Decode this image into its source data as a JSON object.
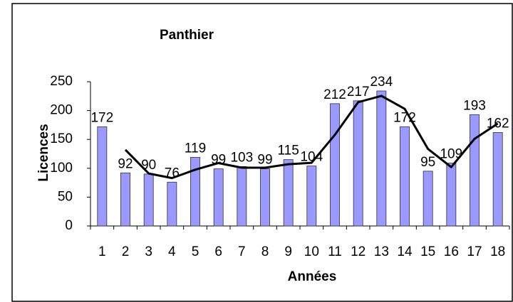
{
  "chart_data": {
    "type": "bar",
    "title": "Panthier",
    "x_label": "Années",
    "y_label": "Licences",
    "categories": [
      "1",
      "2",
      "3",
      "4",
      "5",
      "6",
      "7",
      "8",
      "9",
      "10",
      "11",
      "12",
      "13",
      "14",
      "15",
      "16",
      "17",
      "18"
    ],
    "values": [
      172,
      92,
      90,
      76,
      119,
      99,
      103,
      99,
      115,
      104,
      212,
      217,
      234,
      172,
      95,
      109,
      193,
      162
    ],
    "color": "#9999ff",
    "ylim": [
      0,
      250
    ],
    "yticks": [
      0,
      50,
      100,
      150,
      200,
      250
    ],
    "grid": false,
    "trendline": {
      "period": 2,
      "color": "#000000"
    }
  }
}
